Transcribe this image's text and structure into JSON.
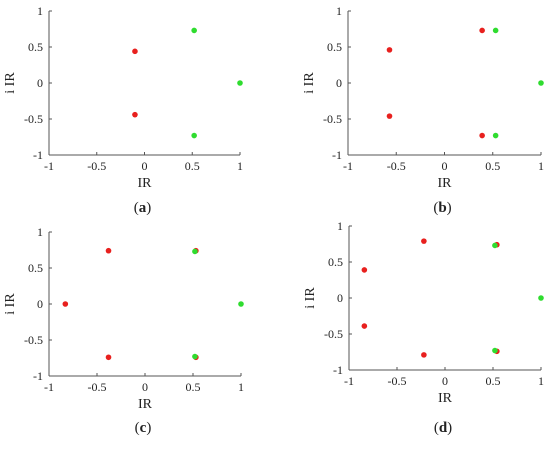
{
  "colors": {
    "red": "#e8201e",
    "green": "#2fdc2f",
    "axis": "#555555",
    "text": "#222222"
  },
  "chart_data": [
    {
      "type": "scatter",
      "caption_open": "(",
      "caption_letter": "a",
      "caption_close": ")",
      "xlabel": "IR",
      "ylabel": "i IR",
      "xlim": [
        -1,
        1
      ],
      "ylim": [
        -1,
        1
      ],
      "xticks": [
        -1,
        -0.5,
        0,
        0.5,
        1
      ],
      "xtick_labels": [
        "-1",
        "-0.5",
        "0",
        "0.5",
        "1"
      ],
      "yticks": [
        -1,
        -0.5,
        0,
        0.5,
        1
      ],
      "ytick_labels": [
        "-1",
        "-0.5",
        "0",
        "0.5",
        "1"
      ],
      "grid": false,
      "legend": "none",
      "series": [
        {
          "color": "#e8201e",
          "points": [
            [
              -0.1,
              0.44
            ],
            [
              -0.1,
              -0.44
            ]
          ]
        },
        {
          "color": "#2fdc2f",
          "points": [
            [
              0.52,
              0.73
            ],
            [
              0.52,
              -0.73
            ],
            [
              1,
              0
            ]
          ]
        }
      ]
    },
    {
      "type": "scatter",
      "caption_open": "(",
      "caption_letter": "b",
      "caption_close": ")",
      "xlabel": "IR",
      "ylabel": "i IR",
      "xlim": [
        -1,
        1
      ],
      "ylim": [
        -1,
        1
      ],
      "xticks": [
        -1,
        -0.5,
        0,
        0.5,
        1
      ],
      "xtick_labels": [
        "-1",
        "-0.5",
        "0",
        "0.5",
        "1"
      ],
      "yticks": [
        -1,
        -0.5,
        0,
        0.5,
        1
      ],
      "ytick_labels": [
        "-1",
        "-0.5",
        "0",
        "0.5",
        "1"
      ],
      "grid": false,
      "legend": "none",
      "series": [
        {
          "color": "#e8201e",
          "points": [
            [
              -0.57,
              0.46
            ],
            [
              -0.57,
              -0.46
            ],
            [
              0.39,
              0.73
            ],
            [
              0.39,
              -0.73
            ]
          ]
        },
        {
          "color": "#2fdc2f",
          "points": [
            [
              0.53,
              0.73
            ],
            [
              0.53,
              -0.73
            ],
            [
              1,
              0
            ]
          ]
        }
      ]
    },
    {
      "type": "scatter",
      "caption_open": "(",
      "caption_letter": "c",
      "caption_close": ")",
      "xlabel": "IR",
      "ylabel": "i IR",
      "xlim": [
        -1,
        1
      ],
      "ylim": [
        -1,
        1
      ],
      "xticks": [
        -1,
        -0.5,
        0,
        0.5,
        1
      ],
      "xtick_labels": [
        "-1",
        "-0.5",
        "0",
        "0.5",
        "1"
      ],
      "yticks": [
        -1,
        -0.5,
        0,
        0.5,
        1
      ],
      "ytick_labels": [
        "-1",
        "-0.5",
        "0",
        "0.5",
        "1"
      ],
      "grid": false,
      "legend": "none",
      "series": [
        {
          "color": "#e8201e",
          "points": [
            [
              -0.83,
              0
            ],
            [
              -0.38,
              0.74
            ],
            [
              -0.38,
              -0.74
            ],
            [
              0.53,
              0.74
            ],
            [
              0.53,
              -0.74
            ]
          ]
        },
        {
          "color": "#2fdc2f",
          "points": [
            [
              0.52,
              0.73
            ],
            [
              0.52,
              -0.73
            ],
            [
              1,
              0
            ]
          ]
        }
      ]
    },
    {
      "type": "scatter",
      "caption_open": "(",
      "caption_letter": "d",
      "caption_close": ")",
      "xlabel": "IR",
      "ylabel": "i IR",
      "xlim": [
        -1,
        1
      ],
      "ylim": [
        -1,
        1
      ],
      "xticks": [
        -1,
        -0.5,
        0,
        0.5,
        1
      ],
      "xtick_labels": [
        "-1",
        "-0.5",
        "0",
        "0.5",
        "1"
      ],
      "yticks": [
        -1,
        -0.5,
        0,
        0.5,
        1
      ],
      "ytick_labels": [
        "-1",
        "-0.5",
        "0",
        "0.5",
        "1"
      ],
      "grid": false,
      "legend": "none",
      "series": [
        {
          "color": "#e8201e",
          "points": [
            [
              -0.84,
              0.39
            ],
            [
              -0.84,
              -0.39
            ],
            [
              -0.22,
              0.79
            ],
            [
              -0.22,
              -0.79
            ],
            [
              0.54,
              0.74
            ],
            [
              0.54,
              -0.74
            ]
          ]
        },
        {
          "color": "#2fdc2f",
          "points": [
            [
              0.52,
              0.73
            ],
            [
              0.52,
              -0.73
            ],
            [
              1,
              0
            ]
          ]
        }
      ]
    }
  ]
}
